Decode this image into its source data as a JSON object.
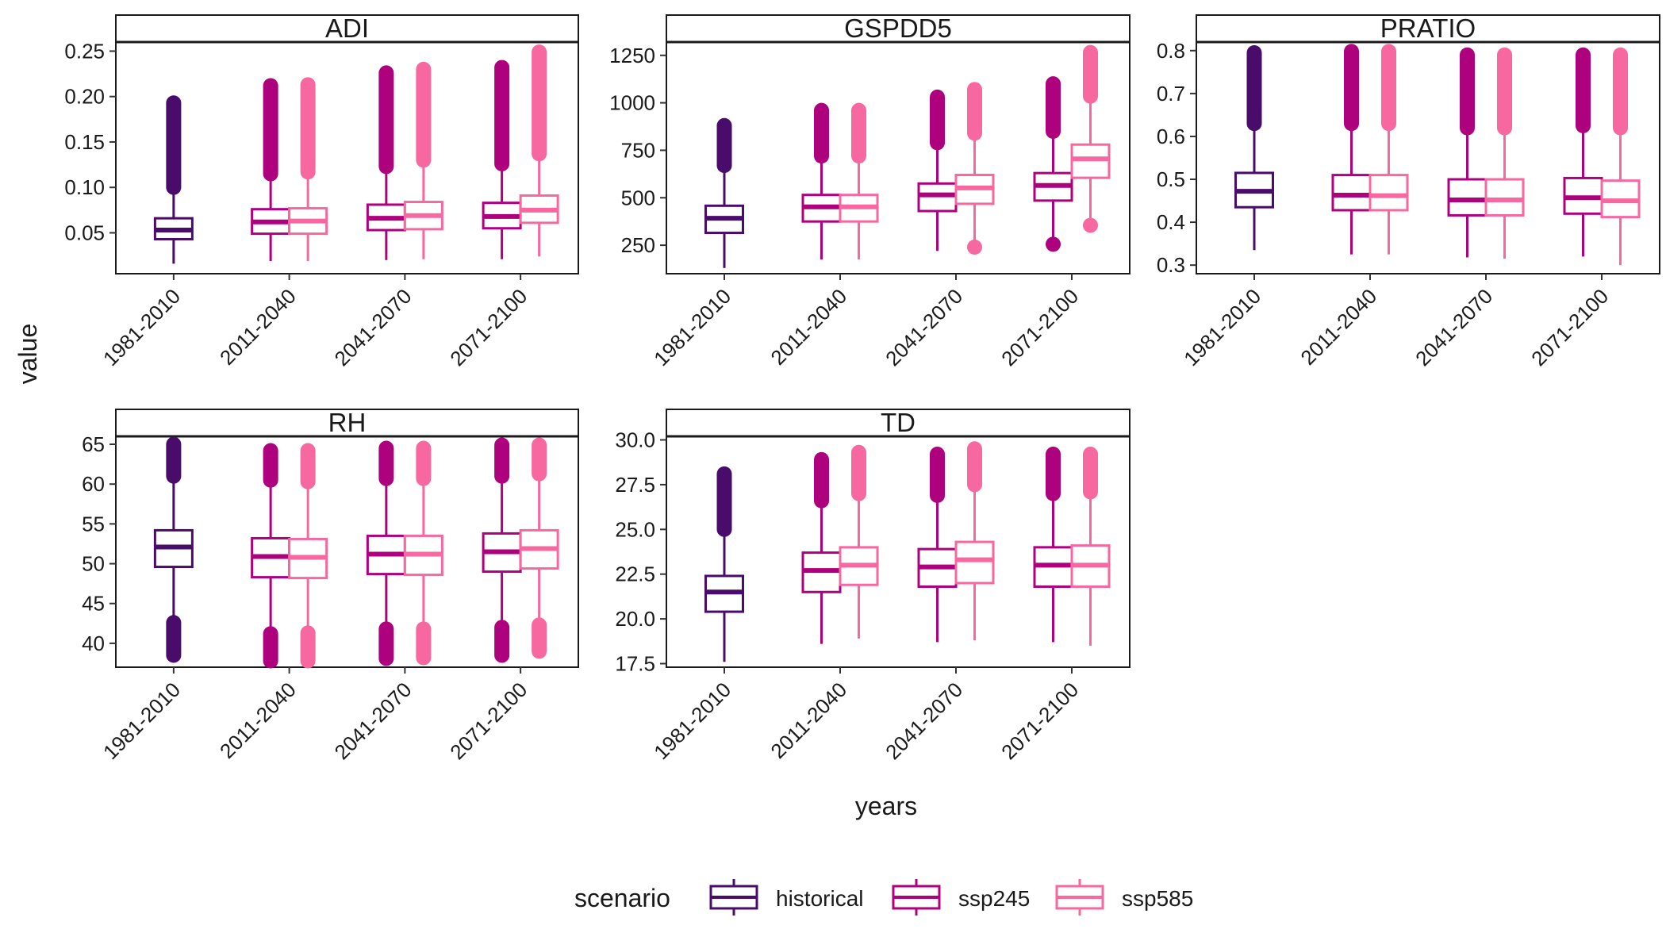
{
  "figure": {
    "xlabel": "years",
    "ylabel": "value",
    "legend": {
      "title": "scenario",
      "position": "bottom",
      "items": [
        {
          "name": "historical",
          "color": "#4A0C6B"
        },
        {
          "name": "ssp245",
          "color": "#AE017E"
        },
        {
          "name": "ssp585",
          "color": "#F768A1"
        }
      ]
    }
  },
  "chart_data": [
    {
      "type": "boxplot",
      "title": "ADI",
      "categories": [
        "1981-2010",
        "2011-2040",
        "2041-2070",
        "2071-2100"
      ],
      "ylim": [
        0.005,
        0.26
      ],
      "yticks": [
        0.05,
        0.1,
        0.15,
        0.2,
        0.25
      ],
      "ytick_labels": [
        "0.05",
        "0.10",
        "0.15",
        "0.20",
        "0.25"
      ],
      "boxes": [
        {
          "category": "1981-2010",
          "series": "historical",
          "min": 0.016,
          "q1": 0.043,
          "median": 0.053,
          "q3": 0.066,
          "max": 0.1,
          "outliers_range": [
            0.1,
            0.193
          ]
        },
        {
          "category": "2011-2040",
          "series": "ssp245",
          "min": 0.019,
          "q1": 0.049,
          "median": 0.062,
          "q3": 0.076,
          "max": 0.115,
          "outliers_range": [
            0.115,
            0.212
          ]
        },
        {
          "category": "2011-2040",
          "series": "ssp585",
          "min": 0.019,
          "q1": 0.049,
          "median": 0.063,
          "q3": 0.077,
          "max": 0.117,
          "outliers_range": [
            0.117,
            0.213
          ]
        },
        {
          "category": "2041-2070",
          "series": "ssp245",
          "min": 0.02,
          "q1": 0.053,
          "median": 0.066,
          "q3": 0.081,
          "max": 0.123,
          "outliers_range": [
            0.123,
            0.226
          ]
        },
        {
          "category": "2041-2070",
          "series": "ssp585",
          "min": 0.021,
          "q1": 0.054,
          "median": 0.069,
          "q3": 0.084,
          "max": 0.13,
          "outliers_range": [
            0.13,
            0.23
          ]
        },
        {
          "category": "2071-2100",
          "series": "ssp245",
          "min": 0.021,
          "q1": 0.055,
          "median": 0.068,
          "q3": 0.083,
          "max": 0.126,
          "outliers_range": [
            0.126,
            0.232
          ]
        },
        {
          "category": "2071-2100",
          "series": "ssp585",
          "min": 0.024,
          "q1": 0.061,
          "median": 0.075,
          "q3": 0.091,
          "max": 0.137,
          "outliers_range": [
            0.137,
            0.249
          ]
        }
      ]
    },
    {
      "type": "boxplot",
      "title": "GSPDD5",
      "categories": [
        "1981-2010",
        "2011-2040",
        "2041-2070",
        "2071-2100"
      ],
      "ylim": [
        100,
        1320
      ],
      "yticks": [
        250,
        500,
        750,
        1000,
        1250
      ],
      "ytick_labels": [
        "250",
        "500",
        "750",
        "1000",
        "1250"
      ],
      "boxes": [
        {
          "category": "1981-2010",
          "series": "historical",
          "min": 130,
          "q1": 315,
          "median": 392,
          "q3": 458,
          "max": 670,
          "outliers_range": [
            670,
            880
          ]
        },
        {
          "category": "2011-2040",
          "series": "ssp245",
          "min": 175,
          "q1": 375,
          "median": 452,
          "q3": 515,
          "max": 720,
          "outliers_range": [
            720,
            960
          ]
        },
        {
          "category": "2011-2040",
          "series": "ssp585",
          "min": 175,
          "q1": 375,
          "median": 452,
          "q3": 515,
          "max": 720,
          "outliers_range": [
            720,
            960
          ]
        },
        {
          "category": "2041-2070",
          "series": "ssp245",
          "min": 220,
          "q1": 430,
          "median": 515,
          "q3": 575,
          "max": 790,
          "outliers_range": [
            790,
            1030
          ]
        },
        {
          "category": "2041-2070",
          "series": "ssp585",
          "min": 240,
          "q1": 468,
          "median": 552,
          "q3": 620,
          "max": 840,
          "outliers_range": [
            840,
            1070
          ]
        },
        {
          "category": "2071-2100",
          "series": "ssp245",
          "min": 260,
          "q1": 485,
          "median": 565,
          "q3": 630,
          "max": 850,
          "outliers_range": [
            850,
            1100
          ]
        },
        {
          "category": "2071-2100",
          "series": "ssp585",
          "min": 355,
          "q1": 605,
          "median": 705,
          "q3": 780,
          "max": 1035,
          "outliers_range": [
            1035,
            1265
          ]
        }
      ],
      "low_outliers": [
        {
          "category": "2041-2070",
          "series": "ssp585",
          "value": 240
        },
        {
          "category": "2071-2100",
          "series": "ssp245",
          "value": 255
        },
        {
          "category": "2071-2100",
          "series": "ssp585",
          "value": 355
        }
      ]
    },
    {
      "type": "boxplot",
      "title": "PRATIO",
      "categories": [
        "1981-2010",
        "2011-2040",
        "2041-2070",
        "2071-2100"
      ],
      "ylim": [
        0.28,
        0.82
      ],
      "yticks": [
        0.3,
        0.4,
        0.5,
        0.6,
        0.7,
        0.8
      ],
      "ytick_labels": [
        "0.3",
        "0.4",
        "0.5",
        "0.6",
        "0.7",
        "0.8"
      ],
      "boxes": [
        {
          "category": "1981-2010",
          "series": "historical",
          "min": 0.335,
          "q1": 0.435,
          "median": 0.472,
          "q3": 0.515,
          "max": 0.63,
          "outliers_range": [
            0.63,
            0.795
          ]
        },
        {
          "category": "2011-2040",
          "series": "ssp245",
          "min": 0.325,
          "q1": 0.428,
          "median": 0.463,
          "q3": 0.51,
          "max": 0.63,
          "outliers_range": [
            0.63,
            0.798
          ]
        },
        {
          "category": "2011-2040",
          "series": "ssp585",
          "min": 0.325,
          "q1": 0.428,
          "median": 0.462,
          "q3": 0.51,
          "max": 0.63,
          "outliers_range": [
            0.63,
            0.798
          ]
        },
        {
          "category": "2041-2070",
          "series": "ssp245",
          "min": 0.318,
          "q1": 0.416,
          "median": 0.452,
          "q3": 0.5,
          "max": 0.62,
          "outliers_range": [
            0.62,
            0.79
          ]
        },
        {
          "category": "2041-2070",
          "series": "ssp585",
          "min": 0.315,
          "q1": 0.416,
          "median": 0.452,
          "q3": 0.5,
          "max": 0.62,
          "outliers_range": [
            0.62,
            0.79
          ]
        },
        {
          "category": "2071-2100",
          "series": "ssp245",
          "min": 0.32,
          "q1": 0.42,
          "median": 0.457,
          "q3": 0.503,
          "max": 0.625,
          "outliers_range": [
            0.625,
            0.79
          ]
        },
        {
          "category": "2071-2100",
          "series": "ssp585",
          "min": 0.3,
          "q1": 0.412,
          "median": 0.45,
          "q3": 0.497,
          "max": 0.62,
          "outliers_range": [
            0.62,
            0.79
          ]
        }
      ]
    },
    {
      "type": "boxplot",
      "title": "RH",
      "categories": [
        "1981-2010",
        "2011-2040",
        "2041-2070",
        "2071-2100"
      ],
      "ylim": [
        37,
        66
      ],
      "yticks": [
        40,
        45,
        50,
        55,
        60,
        65
      ],
      "ytick_labels": [
        "40",
        "45",
        "50",
        "55",
        "60",
        "65"
      ],
      "boxes": [
        {
          "category": "1981-2010",
          "series": "historical",
          "low_outliers_range": [
            38.5,
            42.6
          ],
          "min": 42.6,
          "q1": 49.6,
          "median": 52.1,
          "q3": 54.2,
          "max": 61.0,
          "outliers_range": [
            61.0,
            65.0
          ]
        },
        {
          "category": "2011-2040",
          "series": "ssp245",
          "low_outliers_range": [
            37.8,
            41.2
          ],
          "min": 41.2,
          "q1": 48.3,
          "median": 50.9,
          "q3": 53.2,
          "max": 60.5,
          "outliers_range": [
            60.5,
            64.2
          ]
        },
        {
          "category": "2011-2040",
          "series": "ssp585",
          "low_outliers_range": [
            37.8,
            41.3
          ],
          "min": 41.3,
          "q1": 48.2,
          "median": 50.8,
          "q3": 53.1,
          "max": 60.3,
          "outliers_range": [
            60.3,
            64.2
          ]
        },
        {
          "category": "2041-2070",
          "series": "ssp245",
          "low_outliers_range": [
            38.1,
            41.8
          ],
          "min": 41.8,
          "q1": 48.7,
          "median": 51.2,
          "q3": 53.5,
          "max": 60.7,
          "outliers_range": [
            60.7,
            64.5
          ]
        },
        {
          "category": "2041-2070",
          "series": "ssp585",
          "low_outliers_range": [
            38.2,
            41.8
          ],
          "min": 41.8,
          "q1": 48.6,
          "median": 51.2,
          "q3": 53.5,
          "max": 60.7,
          "outliers_range": [
            60.7,
            64.5
          ]
        },
        {
          "category": "2071-2100",
          "series": "ssp245",
          "low_outliers_range": [
            38.5,
            42.0
          ],
          "min": 42.0,
          "q1": 49.0,
          "median": 51.5,
          "q3": 53.8,
          "max": 61.0,
          "outliers_range": [
            61.0,
            64.9
          ]
        },
        {
          "category": "2071-2100",
          "series": "ssp585",
          "low_outliers_range": [
            39.0,
            42.3
          ],
          "min": 42.3,
          "q1": 49.4,
          "median": 51.9,
          "q3": 54.2,
          "max": 61.3,
          "outliers_range": [
            61.3,
            64.9
          ]
        }
      ]
    },
    {
      "type": "boxplot",
      "title": "TD",
      "categories": [
        "1981-2010",
        "2011-2040",
        "2041-2070",
        "2071-2100"
      ],
      "ylim": [
        17.3,
        30.2
      ],
      "yticks": [
        17.5,
        20.0,
        22.5,
        25.0,
        27.5,
        30.0
      ],
      "ytick_labels": [
        "17.5",
        "20.0",
        "22.5",
        "25.0",
        "27.5",
        "30.0"
      ],
      "boxes": [
        {
          "category": "1981-2010",
          "series": "historical",
          "min": 17.6,
          "q1": 20.4,
          "median": 21.5,
          "q3": 22.4,
          "max": 25.0,
          "outliers_range": [
            25.0,
            28.1
          ]
        },
        {
          "category": "2011-2040",
          "series": "ssp245",
          "min": 18.6,
          "q1": 21.5,
          "median": 22.7,
          "q3": 23.7,
          "max": 26.6,
          "outliers_range": [
            26.6,
            28.9
          ]
        },
        {
          "category": "2011-2040",
          "series": "ssp585",
          "min": 18.9,
          "q1": 21.9,
          "median": 23.0,
          "q3": 24.0,
          "max": 27.0,
          "outliers_range": [
            27.0,
            29.3
          ]
        },
        {
          "category": "2041-2070",
          "series": "ssp245",
          "min": 18.7,
          "q1": 21.8,
          "median": 22.9,
          "q3": 23.9,
          "max": 26.9,
          "outliers_range": [
            26.9,
            29.2
          ]
        },
        {
          "category": "2041-2070",
          "series": "ssp585",
          "min": 18.8,
          "q1": 22.0,
          "median": 23.3,
          "q3": 24.3,
          "max": 27.5,
          "outliers_range": [
            27.5,
            29.5
          ]
        },
        {
          "category": "2071-2100",
          "series": "ssp245",
          "min": 18.7,
          "q1": 21.8,
          "median": 23.0,
          "q3": 24.0,
          "max": 27.0,
          "outliers_range": [
            27.0,
            29.2
          ]
        },
        {
          "category": "2071-2100",
          "series": "ssp585",
          "min": 18.5,
          "q1": 21.8,
          "median": 23.0,
          "q3": 24.1,
          "max": 27.1,
          "outliers_range": [
            27.1,
            29.2
          ]
        }
      ]
    }
  ]
}
